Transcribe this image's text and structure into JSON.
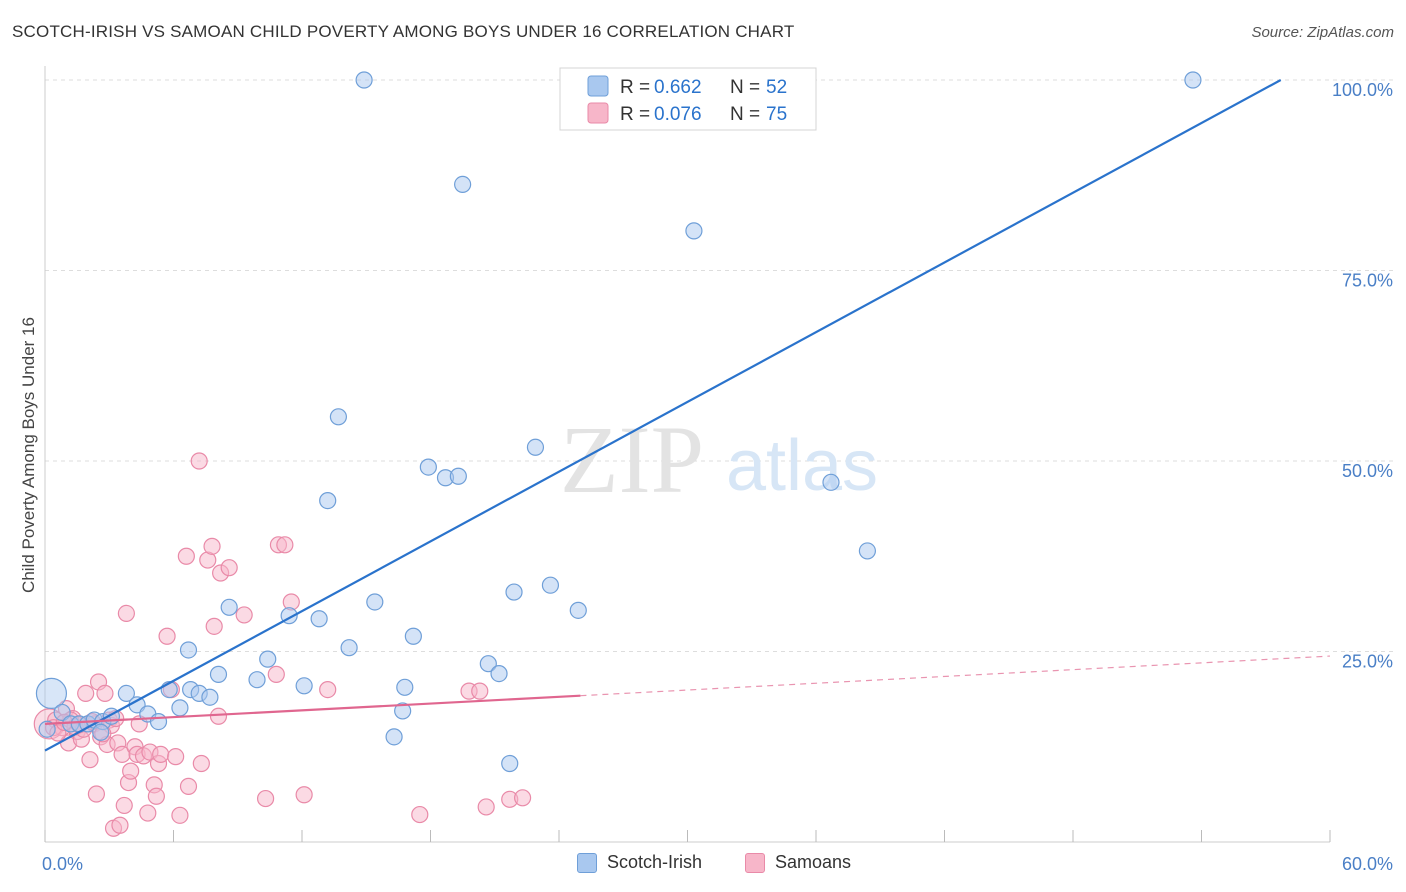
{
  "title": "SCOTCH-IRISH VS SAMOAN CHILD POVERTY AMONG BOYS UNDER 16 CORRELATION CHART",
  "source": "Source: ZipAtlas.com",
  "watermark": {
    "zip": "ZIP",
    "atlas": "atlas"
  },
  "colors": {
    "blue_fill": "#a9c8ef",
    "blue_stroke": "#6f9fd8",
    "blue_line": "#2a73cc",
    "pink_fill": "#f7b6c9",
    "pink_stroke": "#e98aa8",
    "pink_line": "#e0668f",
    "axis_text": "#4a7fc6",
    "grid": "#dddddd"
  },
  "legend": {
    "rows": [
      {
        "r_label": "R = ",
        "r_value": "0.662",
        "n_label": "N = ",
        "n_value": "52"
      },
      {
        "r_label": "R = ",
        "r_value": "0.076",
        "n_label": "N = ",
        "n_value": "75"
      }
    ]
  },
  "bottom_legend": {
    "series1": "Scotch-Irish",
    "series2": "Samoans"
  },
  "chart_data": {
    "type": "scatter",
    "title": "SCOTCH-IRISH VS SAMOAN CHILD POVERTY AMONG BOYS UNDER 16 CORRELATION CHART",
    "xlabel": "",
    "ylabel": "Child Poverty Among Boys Under 16",
    "xlim": [
      0,
      60
    ],
    "ylim": [
      0,
      100
    ],
    "x_tick_labels": [
      "0.0%",
      "60.0%"
    ],
    "y_tick_labels": [
      "25.0%",
      "50.0%",
      "75.0%",
      "100.0%"
    ],
    "y_ticks": [
      25,
      50,
      75,
      100
    ],
    "grid": true,
    "legend_position": "top-center",
    "series": [
      {
        "name": "Scotch-Irish",
        "r": 0.662,
        "n": 52,
        "trend": {
          "x": [
            0,
            57.7
          ],
          "y": [
            12.0,
            100.0
          ],
          "style": "solid"
        },
        "points": [
          [
            0.3,
            19.5
          ],
          [
            0.8,
            17.0
          ],
          [
            1.2,
            15.5
          ],
          [
            1.6,
            15.5
          ],
          [
            2.0,
            15.5
          ],
          [
            2.3,
            16.0
          ],
          [
            2.7,
            15.8
          ],
          [
            3.1,
            16.5
          ],
          [
            3.8,
            19.5
          ],
          [
            4.3,
            18.0
          ],
          [
            4.8,
            16.8
          ],
          [
            5.3,
            15.8
          ],
          [
            5.8,
            20.0
          ],
          [
            6.3,
            17.6
          ],
          [
            6.7,
            25.2
          ],
          [
            6.8,
            20.0
          ],
          [
            7.2,
            19.5
          ],
          [
            7.7,
            19.0
          ],
          [
            8.1,
            22.0
          ],
          [
            8.6,
            30.8
          ],
          [
            9.9,
            21.3
          ],
          [
            10.4,
            24.0
          ],
          [
            11.4,
            29.7
          ],
          [
            12.1,
            20.5
          ],
          [
            12.8,
            29.3
          ],
          [
            13.2,
            44.8
          ],
          [
            13.7,
            55.8
          ],
          [
            14.2,
            25.5
          ],
          [
            14.9,
            100.0
          ],
          [
            15.4,
            31.5
          ],
          [
            16.3,
            13.8
          ],
          [
            16.7,
            17.2
          ],
          [
            16.8,
            20.3
          ],
          [
            17.2,
            27.0
          ],
          [
            17.9,
            49.2
          ],
          [
            18.7,
            47.8
          ],
          [
            19.3,
            48.0
          ],
          [
            19.5,
            86.3
          ],
          [
            20.7,
            23.4
          ],
          [
            21.2,
            22.1
          ],
          [
            21.7,
            10.3
          ],
          [
            21.9,
            32.8
          ],
          [
            22.9,
            51.8
          ],
          [
            23.6,
            33.7
          ],
          [
            24.9,
            30.4
          ],
          [
            30.3,
            80.2
          ],
          [
            36.7,
            47.2
          ],
          [
            38.4,
            38.2
          ],
          [
            53.6,
            100.0
          ],
          [
            0.1,
            14.8
          ],
          [
            2.6,
            14.4
          ]
        ]
      },
      {
        "name": "Samoans",
        "r": 0.076,
        "n": 75,
        "trend": {
          "x": [
            0,
            25.0,
            60.0
          ],
          "y": [
            15.5,
            19.2,
            24.4
          ],
          "style": "solid-then-dashed"
        },
        "points": [
          [
            0.2,
            15.5
          ],
          [
            0.5,
            16.0
          ],
          [
            0.8,
            15.0
          ],
          [
            1.0,
            17.5
          ],
          [
            1.1,
            13.0
          ],
          [
            1.3,
            16.2
          ],
          [
            1.5,
            14.5
          ],
          [
            1.7,
            13.5
          ],
          [
            1.9,
            19.5
          ],
          [
            2.1,
            10.8
          ],
          [
            2.3,
            15.5
          ],
          [
            2.4,
            6.3
          ],
          [
            2.5,
            21.0
          ],
          [
            2.6,
            13.8
          ],
          [
            2.8,
            19.5
          ],
          [
            2.9,
            12.8
          ],
          [
            3.0,
            16.0
          ],
          [
            3.1,
            15.3
          ],
          [
            3.2,
            1.8
          ],
          [
            3.4,
            13.0
          ],
          [
            3.5,
            2.2
          ],
          [
            3.6,
            11.5
          ],
          [
            3.7,
            4.8
          ],
          [
            3.8,
            30.0
          ],
          [
            3.9,
            7.8
          ],
          [
            4.0,
            9.3
          ],
          [
            4.2,
            12.5
          ],
          [
            4.3,
            11.5
          ],
          [
            4.4,
            15.5
          ],
          [
            4.6,
            11.3
          ],
          [
            4.8,
            3.8
          ],
          [
            4.9,
            11.8
          ],
          [
            5.1,
            7.5
          ],
          [
            5.2,
            6.0
          ],
          [
            5.3,
            10.3
          ],
          [
            5.4,
            11.5
          ],
          [
            5.7,
            27.0
          ],
          [
            5.9,
            20.0
          ],
          [
            6.1,
            11.2
          ],
          [
            6.3,
            3.5
          ],
          [
            6.6,
            37.5
          ],
          [
            6.7,
            7.3
          ],
          [
            7.2,
            50.0
          ],
          [
            7.3,
            10.3
          ],
          [
            7.6,
            37.0
          ],
          [
            7.8,
            38.8
          ],
          [
            7.9,
            28.3
          ],
          [
            8.1,
            16.5
          ],
          [
            8.2,
            35.3
          ],
          [
            8.6,
            36.0
          ],
          [
            9.3,
            29.8
          ],
          [
            10.3,
            5.7
          ],
          [
            10.8,
            22.0
          ],
          [
            10.9,
            39.0
          ],
          [
            11.2,
            39.0
          ],
          [
            11.5,
            31.5
          ],
          [
            12.1,
            6.2
          ],
          [
            13.2,
            20.0
          ],
          [
            17.5,
            3.6
          ],
          [
            19.8,
            19.8
          ],
          [
            20.3,
            19.8
          ],
          [
            20.6,
            4.6
          ],
          [
            21.7,
            5.6
          ],
          [
            22.3,
            5.8
          ],
          [
            0.4,
            15.0
          ],
          [
            0.6,
            14.3
          ],
          [
            1.2,
            16.0
          ],
          [
            1.4,
            15.1
          ],
          [
            1.8,
            14.8
          ],
          [
            2.2,
            15.8
          ],
          [
            2.7,
            14.2
          ],
          [
            3.3,
            16.2
          ],
          [
            0.9,
            15.7
          ],
          [
            1.6,
            15.4
          ]
        ]
      }
    ]
  }
}
